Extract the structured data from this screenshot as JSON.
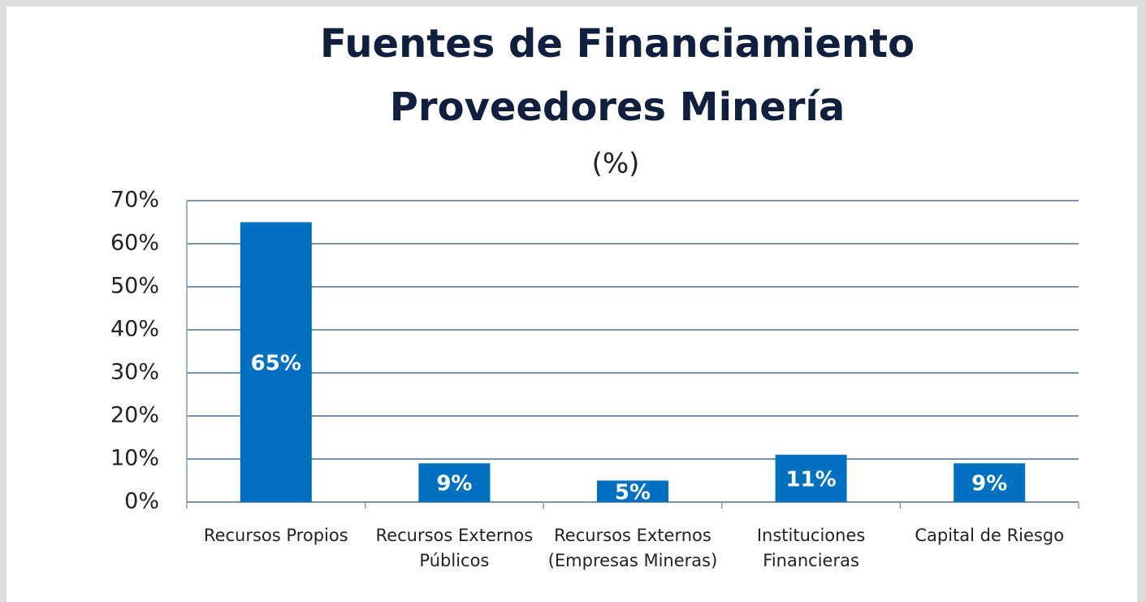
{
  "chart_data": {
    "type": "bar",
    "title": [
      "Fuentes de Financiamiento",
      "Proveedores Minería"
    ],
    "subtitle": "(%)",
    "categories": [
      [
        "Recursos Propios"
      ],
      [
        "Recursos Externos",
        "Públicos"
      ],
      [
        "Recursos Externos",
        "(Empresas Mineras)"
      ],
      [
        "Instituciones",
        "Financieras"
      ],
      [
        "Capital de Riesgo"
      ]
    ],
    "values": [
      65,
      9,
      5,
      11,
      9
    ],
    "value_labels": [
      "65%",
      "9%",
      "5%",
      "11%",
      "9%"
    ],
    "color": "#0070c0",
    "ylim": [
      0,
      70
    ],
    "yticks": [
      {
        "value": 0,
        "label": "0%"
      },
      {
        "value": 10,
        "label": "10%"
      },
      {
        "value": 20,
        "label": "20%"
      },
      {
        "value": 30,
        "label": "30%"
      },
      {
        "value": 40,
        "label": "40%"
      },
      {
        "value": 50,
        "label": "50%"
      },
      {
        "value": 60,
        "label": "60%"
      },
      {
        "value": 70,
        "label": "70%"
      }
    ],
    "grid": true
  }
}
